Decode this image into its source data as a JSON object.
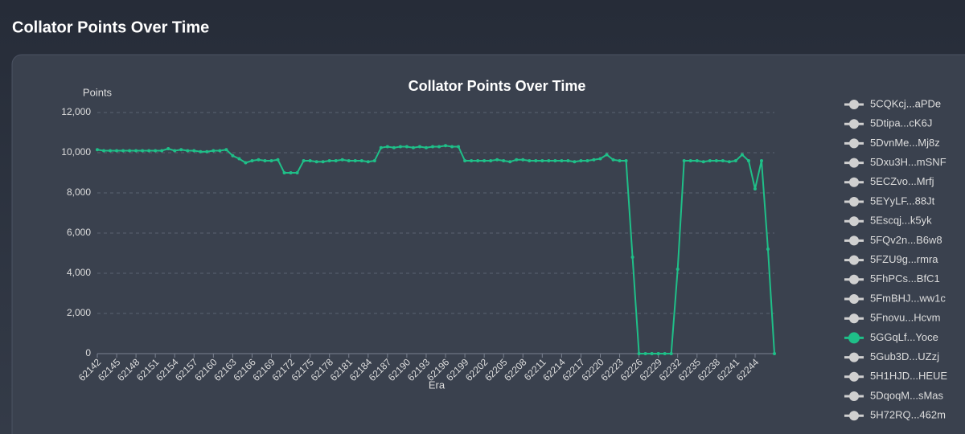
{
  "header": {
    "title": "Collator Points Over Time"
  },
  "chart_data": {
    "type": "line",
    "title": "Collator Points Over Time",
    "y_label": "Points",
    "x_label": "Era",
    "categories": [
      "62142",
      null,
      null,
      "62145",
      null,
      null,
      "62148",
      null,
      null,
      "62151",
      null,
      null,
      "62154",
      null,
      null,
      "62157",
      null,
      null,
      "62160",
      null,
      null,
      "62163",
      null,
      null,
      "62166",
      null,
      null,
      "62169",
      null,
      null,
      "62172",
      null,
      null,
      "62175",
      null,
      null,
      "62178",
      null,
      null,
      "62181",
      null,
      null,
      "62184",
      null,
      null,
      "62187",
      null,
      null,
      "62190",
      null,
      null,
      "62193",
      null,
      null,
      "62196",
      null,
      null,
      "62199",
      null,
      null,
      "62202",
      null,
      null,
      "62205",
      null,
      null,
      "62208",
      null,
      null,
      "62211",
      null,
      null,
      "62214",
      null,
      null,
      "62217",
      null,
      null,
      "62220",
      null,
      null,
      "62223",
      null,
      null,
      "62226",
      null,
      null,
      "62229",
      null,
      null,
      "62232",
      null,
      null,
      "62235",
      null,
      null,
      "62238",
      null,
      null,
      "62241",
      null,
      null,
      "62244",
      null,
      null,
      null
    ],
    "ylim": [
      0,
      12000
    ],
    "yticks": [
      0,
      {
        "value": 2000,
        "label": "2,000"
      },
      {
        "value": 4000,
        "label": "4,000"
      },
      {
        "value": 6000,
        "label": "6,000"
      },
      {
        "value": 8000,
        "label": "8,000"
      },
      {
        "value": 10000,
        "label": "10,000"
      },
      {
        "value": 12000,
        "label": "12,000"
      }
    ],
    "grid": true,
    "legend": "right",
    "series": [
      {
        "name": "5CQKcj...aPDe",
        "color": "#d0d0d0",
        "visible": false
      },
      {
        "name": "5Dtipa...cK6J",
        "color": "#d0d0d0",
        "visible": false
      },
      {
        "name": "5DvnMe...Mj8z",
        "color": "#d0d0d0",
        "visible": false
      },
      {
        "name": "5Dxu3H...mSNF",
        "color": "#d0d0d0",
        "visible": false
      },
      {
        "name": "5ECZvo...Mrfj",
        "color": "#d0d0d0",
        "visible": false
      },
      {
        "name": "5EYyLF...88Jt",
        "color": "#d0d0d0",
        "visible": false
      },
      {
        "name": "5Escqj...k5yk",
        "color": "#d0d0d0",
        "visible": false
      },
      {
        "name": "5FQv2n...B6w8",
        "color": "#d0d0d0",
        "visible": false
      },
      {
        "name": "5FZU9g...rmra",
        "color": "#d0d0d0",
        "visible": false
      },
      {
        "name": "5FhPCs...BfC1",
        "color": "#d0d0d0",
        "visible": false
      },
      {
        "name": "5FmBHJ...ww1c",
        "color": "#d0d0d0",
        "visible": false
      },
      {
        "name": "5Fnovu...Hcvm",
        "color": "#d0d0d0",
        "visible": false
      },
      {
        "name": "5GGqLf...Yoce",
        "color": "#1fbf88",
        "visible": true,
        "values": [
          10150,
          10100,
          10100,
          10100,
          10100,
          10100,
          10100,
          10100,
          10100,
          10100,
          10100,
          10200,
          10100,
          10150,
          10100,
          10100,
          10050,
          10050,
          10100,
          10100,
          10150,
          9850,
          9700,
          9500,
          9600,
          9650,
          9600,
          9600,
          9650,
          9000,
          9000,
          9000,
          9600,
          9600,
          9550,
          9550,
          9600,
          9600,
          9650,
          9600,
          9600,
          9600,
          9550,
          9600,
          10250,
          10300,
          10250,
          10300,
          10300,
          10250,
          10300,
          10250,
          10300,
          10300,
          10350,
          10300,
          10300,
          9600,
          9600,
          9600,
          9600,
          9600,
          9650,
          9600,
          9550,
          9650,
          9650,
          9600,
          9600,
          9600,
          9600,
          9600,
          9600,
          9600,
          9550,
          9600,
          9600,
          9650,
          9700,
          9900,
          9650,
          9600,
          9600,
          4800,
          0,
          0,
          0,
          0,
          0,
          0,
          4200,
          9600,
          9600,
          9600,
          9550,
          9600,
          9600,
          9600,
          9550,
          9600,
          9900,
          9600,
          8200,
          9600,
          5200,
          0
        ]
      },
      {
        "name": "5Gub3D...UZzj",
        "color": "#d0d0d0",
        "visible": false
      },
      {
        "name": "5H1HJD...HEUE",
        "color": "#d0d0d0",
        "visible": false
      },
      {
        "name": "5DqoqM...sMas",
        "color": "#d0d0d0",
        "visible": false
      },
      {
        "name": "5H72RQ...462m",
        "color": "#d0d0d0",
        "visible": false
      }
    ]
  }
}
